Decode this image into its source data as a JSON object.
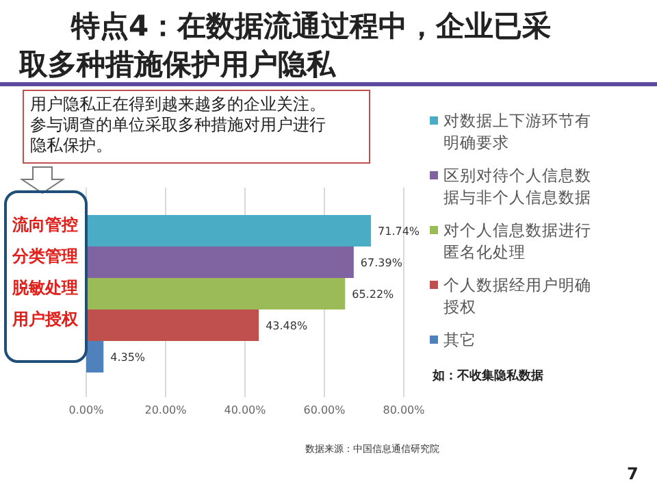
{
  "chart_data": {
    "type": "bar",
    "orientation": "horizontal",
    "title": "特点4：在数据流通过程中，企业已采取多种措施保护用户隐私",
    "categories": [
      null
    ],
    "series": [
      {
        "name": "对数据上下游环节有明确要求",
        "color": "#4bacc6",
        "values": [
          71.74
        ],
        "value_labels": [
          "71.74%"
        ]
      },
      {
        "name": "区别对待个人信息数据与非个人信息数据",
        "color": "#8064a2",
        "values": [
          67.39
        ],
        "value_labels": [
          "67.39%"
        ]
      },
      {
        "name": "对个人信息数据进行匿名化处理",
        "color": "#9bbb59",
        "values": [
          65.22
        ],
        "value_labels": [
          "65.22%"
        ]
      },
      {
        "name": "个人数据经用户明确授权",
        "color": "#c0504d",
        "values": [
          43.48
        ],
        "value_labels": [
          "43.48%"
        ]
      },
      {
        "name": "其它",
        "color": "#4f81bd",
        "values": [
          4.35
        ],
        "value_labels": [
          "4.35%"
        ]
      }
    ],
    "xlim": [
      0,
      80
    ],
    "xticks": [
      {
        "value": 0,
        "label": "0.00%"
      },
      {
        "value": 20,
        "label": "20.00%"
      },
      {
        "value": 40,
        "label": "40.00%"
      },
      {
        "value": 60,
        "label": "60.00%"
      },
      {
        "value": 80,
        "label": "80.00%"
      }
    ],
    "grid": "x",
    "legend": "right",
    "annotations": [
      {
        "text": "用户隐私正在得到越来越多的企业关注。参与调查的单位采取多种措施对用户进行隐私保护。"
      },
      "流向管控",
      "分类管理",
      "脱敏处理",
      "用户授权",
      "如：不收集隐私数据",
      "数据来源：中国信息通信研究院",
      "7"
    ]
  }
}
